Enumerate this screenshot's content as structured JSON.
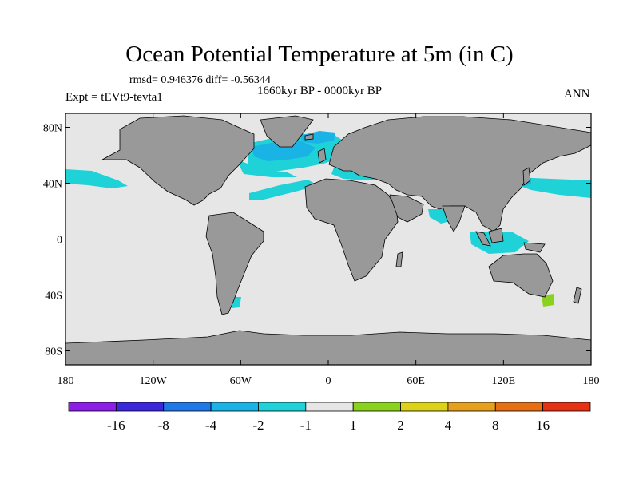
{
  "figure": {
    "title": "Ocean Potential Temperature at 5m (in C)",
    "stats_line": "rmsd= 0.946376 diff= -0.56344",
    "period": "1660kyr BP - 0000kyr BP",
    "experiment": "Expt = tEVt9-tevta1",
    "season": "ANN"
  },
  "map": {
    "projection": "cylindrical equidistant",
    "lon_range": [
      -180,
      180
    ],
    "lat_range": [
      -90,
      90
    ],
    "lat_ticks": [
      {
        "value": 80,
        "label": "80N"
      },
      {
        "value": 40,
        "label": "40N"
      },
      {
        "value": 0,
        "label": "0"
      },
      {
        "value": -40,
        "label": "40S"
      },
      {
        "value": -80,
        "label": "80S"
      }
    ],
    "lon_ticks": [
      {
        "value": -180,
        "label": "180"
      },
      {
        "value": -120,
        "label": "120W"
      },
      {
        "value": -60,
        "label": "60W"
      },
      {
        "value": 0,
        "label": "0"
      },
      {
        "value": 60,
        "label": "60E"
      },
      {
        "value": 120,
        "label": "120E"
      },
      {
        "value": 180,
        "label": "180"
      }
    ],
    "colors": {
      "ocean_neutral": "#e6e6e6",
      "land": "#999999",
      "coast": "#000000",
      "cyan": "#1fd2d8",
      "light_blue": "#19b3e6",
      "mid_blue": "#1e8ce6",
      "green": "#8ad21e",
      "yellow": "#dcd21a"
    },
    "anomaly_areas": [
      {
        "region": "North Atlantic subpolar",
        "class": "-2 to -1"
      },
      {
        "region": "Labrador / Irminger seas",
        "class": "-4 to -2"
      },
      {
        "region": "Subtropical North Atlantic band",
        "class": "-2 to -1"
      },
      {
        "region": "North Pacific west of Mexico",
        "class": "-2 to -1"
      },
      {
        "region": "Kuroshio extension",
        "class": "-2 to -1"
      },
      {
        "region": "Japan coast",
        "class": "-4 to -2"
      },
      {
        "region": "Mediterranean",
        "class": "-2 to -1"
      },
      {
        "region": "Indian Ocean coastal",
        "class": "-2 to -1"
      },
      {
        "region": "Maritime continent",
        "class": "-2 to -1"
      },
      {
        "region": "Tasman Sea",
        "class": "1 to 2"
      },
      {
        "region": "Patagonian shelf",
        "class": "-2 to -1"
      }
    ]
  },
  "colorbar": {
    "colors": [
      "#8c1ee6",
      "#3c28dc",
      "#1e78e6",
      "#19b3e6",
      "#1fd2d8",
      "#e6e6e6",
      "#8ad21e",
      "#dcd21a",
      "#e6a01e",
      "#e66e14",
      "#e63214"
    ],
    "labels": [
      "-16",
      "-8",
      "-4",
      "-2",
      "-1",
      "1",
      "2",
      "4",
      "8",
      "16"
    ]
  }
}
